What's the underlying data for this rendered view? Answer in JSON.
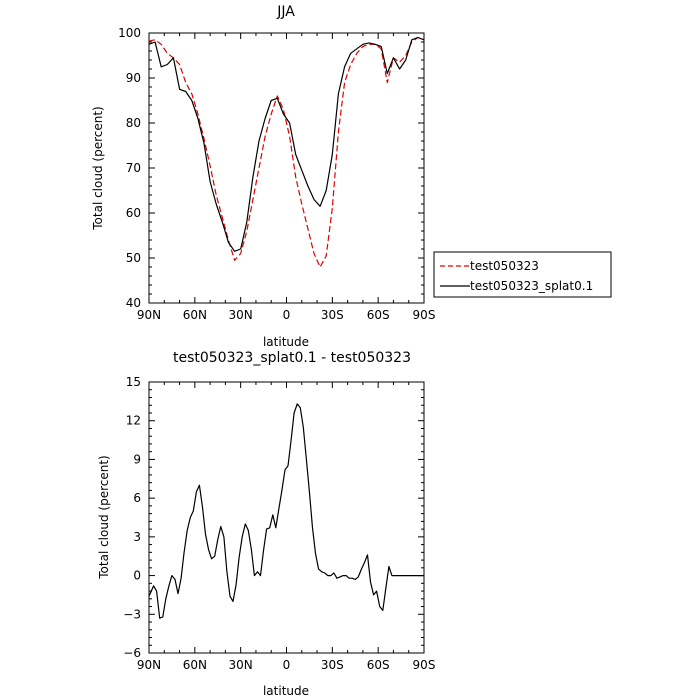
{
  "chart_data": [
    {
      "type": "line",
      "title": "JJA",
      "xlabel": "latitude",
      "ylabel": "Total cloud (percent)",
      "xlim": [
        90,
        -90
      ],
      "ylim": [
        40,
        100
      ],
      "xticks": [
        {
          "value": 90,
          "label": "90N"
        },
        {
          "value": 60,
          "label": "60N"
        },
        {
          "value": 30,
          "label": "30N"
        },
        {
          "value": 0,
          "label": "0"
        },
        {
          "value": -30,
          "label": "30S"
        },
        {
          "value": -60,
          "label": "60S"
        },
        {
          "value": -90,
          "label": "90S"
        }
      ],
      "yticks": [
        40,
        50,
        60,
        70,
        80,
        90,
        100
      ],
      "legend": "right",
      "series": [
        {
          "name": "test050323",
          "color": "#e00000",
          "dash": "dashed",
          "x": [
            90,
            86,
            82,
            78,
            74,
            70,
            66,
            62,
            58,
            54,
            50,
            46,
            42,
            38,
            34,
            30,
            26,
            22,
            18,
            14,
            10,
            6,
            2,
            -2,
            -6,
            -10,
            -14,
            -18,
            -22,
            -26,
            -30,
            -34,
            -38,
            -42,
            -46,
            -50,
            -54,
            -58,
            -62,
            -66,
            -70,
            -74,
            -78,
            -82,
            -86,
            -90
          ],
          "y": [
            98.2,
            98.5,
            97.5,
            95.5,
            94.5,
            93,
            89,
            86.5,
            82,
            76.5,
            70.5,
            64,
            59,
            54,
            49.5,
            51,
            56,
            63,
            70,
            77,
            82,
            86,
            83,
            77,
            68,
            62,
            56.5,
            51,
            48,
            50.5,
            61,
            78,
            89,
            93,
            95.5,
            97,
            97.5,
            97.5,
            96.5,
            89,
            94.5,
            93.5,
            95,
            98,
            99,
            98.5
          ]
        },
        {
          "name": "test050323_splat0.1",
          "color": "#000000",
          "dash": "solid",
          "x": [
            90,
            86,
            82,
            78,
            74,
            70,
            66,
            62,
            58,
            54,
            50,
            46,
            42,
            38,
            34,
            30,
            26,
            22,
            18,
            14,
            10,
            6,
            2,
            -2,
            -6,
            -10,
            -14,
            -18,
            -22,
            -26,
            -30,
            -34,
            -38,
            -42,
            -46,
            -50,
            -54,
            -58,
            -62,
            -66,
            -70,
            -74,
            -78,
            -82,
            -86,
            -90
          ],
          "y": [
            97.5,
            98,
            92.5,
            93,
            94.5,
            87.5,
            87,
            85,
            81,
            75.5,
            67,
            62,
            58,
            53.5,
            51.5,
            52,
            58,
            68,
            76,
            81,
            85,
            85.5,
            82,
            80,
            73,
            69.5,
            66,
            63,
            61.5,
            65,
            73,
            86.5,
            92.5,
            95.5,
            96.5,
            97.5,
            97.8,
            97.5,
            97,
            91,
            94.5,
            92,
            94,
            98.5,
            99,
            98.5
          ]
        }
      ]
    },
    {
      "type": "line",
      "title": "test050323_splat0.1 - test050323",
      "xlabel": "latitude",
      "ylabel": "Total cloud (percent)",
      "xlim": [
        90,
        -90
      ],
      "ylim": [
        -6,
        15
      ],
      "xticks": [
        {
          "value": 90,
          "label": "90N"
        },
        {
          "value": 60,
          "label": "60N"
        },
        {
          "value": 30,
          "label": "30N"
        },
        {
          "value": 0,
          "label": "0"
        },
        {
          "value": -30,
          "label": "30S"
        },
        {
          "value": -60,
          "label": "60S"
        },
        {
          "value": -90,
          "label": "90S"
        }
      ],
      "yticks": [
        -6,
        -3,
        0,
        3,
        6,
        9,
        12,
        15
      ],
      "series": [
        {
          "name": "",
          "color": "#000000",
          "dash": "solid",
          "x": [
            90,
            87,
            85,
            83,
            81,
            79,
            77,
            75,
            73,
            71,
            69,
            67,
            65,
            63,
            61,
            59,
            57,
            55,
            53,
            51,
            49,
            47,
            45,
            43,
            41,
            39,
            37,
            35,
            33,
            31,
            29,
            27,
            25,
            23,
            21,
            19,
            17,
            15,
            13,
            11,
            9,
            7,
            5,
            3,
            1,
            -1,
            -3,
            -5,
            -7,
            -9,
            -11,
            -13,
            -15,
            -17,
            -19,
            -21,
            -23,
            -25,
            -27,
            -29,
            -31,
            -33,
            -35,
            -37,
            -39,
            -41,
            -43,
            -45,
            -47,
            -49,
            -51,
            -53,
            -55,
            -57,
            -59,
            -61,
            -63,
            -65,
            -67,
            -69,
            -71,
            -73,
            -75,
            -77,
            -79,
            -81,
            -83,
            -85,
            -87,
            -89,
            -90
          ],
          "y": [
            -1.6,
            -0.8,
            -1.2,
            -3.3,
            -3.2,
            -1.8,
            -0.8,
            0,
            -0.3,
            -1.4,
            -0.2,
            1.8,
            3.5,
            4.5,
            5,
            6.5,
            7,
            5.3,
            3.2,
            2,
            1.3,
            1.5,
            2.8,
            3.8,
            3,
            0.3,
            -1.6,
            -2,
            -0.7,
            1.4,
            3,
            4,
            3.5,
            2,
            0,
            0.3,
            0,
            2,
            3.6,
            3.7,
            4.7,
            3.7,
            5.2,
            6.6,
            8.2,
            8.5,
            10.5,
            12.6,
            13.3,
            13,
            11.5,
            9,
            6.5,
            3.7,
            1.7,
            0.5,
            0.3,
            0.2,
            0,
            0,
            0.2,
            -0.2,
            -0.1,
            0,
            0,
            -0.2,
            -0.2,
            -0.3,
            -0.1,
            0.5,
            1,
            1.6,
            -0.5,
            -1.5,
            -1.2,
            -2.4,
            -2.7,
            -1,
            0.7,
            0,
            0,
            0,
            0,
            0,
            0,
            0,
            0,
            0,
            0,
            0,
            0
          ]
        }
      ]
    }
  ]
}
